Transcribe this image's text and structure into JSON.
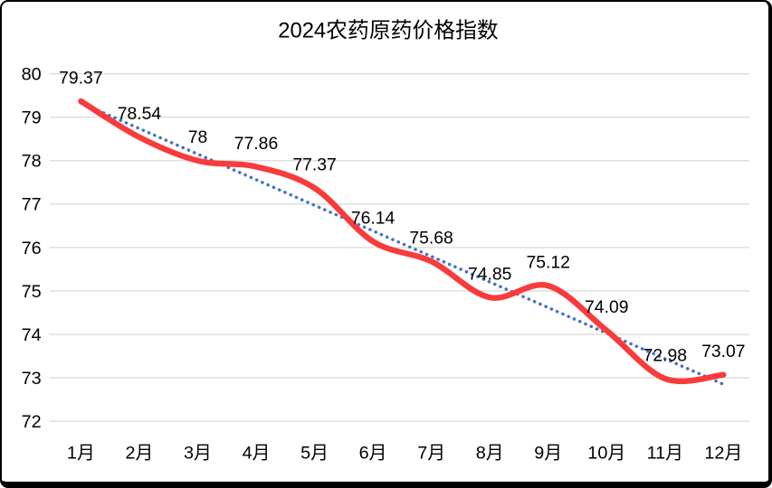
{
  "frame": {
    "background": "#ffffff",
    "border_color": "#000000"
  },
  "chart_data": {
    "type": "line",
    "title": "2024农药原药价格指数",
    "categories": [
      "1月",
      "2月",
      "3月",
      "4月",
      "5月",
      "6月",
      "7月",
      "8月",
      "9月",
      "10月",
      "11月",
      "12月"
    ],
    "series": [
      {
        "name": "price-index-smooth-line",
        "line_style": "smooth",
        "color": "#f83b3b",
        "values": [
          79.37,
          78.54,
          78,
          77.86,
          77.37,
          76.14,
          75.68,
          74.85,
          75.12,
          74.09,
          72.98,
          73.07
        ],
        "data_labels": [
          "79.37",
          "78.54",
          "78",
          "77.86",
          "77.37",
          "76.14",
          "75.68",
          "74.85",
          "75.12",
          "74.09",
          "72.98",
          "73.07"
        ]
      },
      {
        "name": "linear-trendline",
        "line_style": "dotted",
        "color": "#4472c4",
        "derived": "linear-regression-of-series-0"
      }
    ],
    "xlabel": "",
    "ylabel": "",
    "ylim": [
      72,
      80
    ],
    "yticks": [
      "80",
      "79",
      "78",
      "77",
      "76",
      "75",
      "74",
      "73",
      "72"
    ],
    "grid": true,
    "gridline_color": "#dcdcdc",
    "text_color": "#000000",
    "legend_position": "none"
  }
}
